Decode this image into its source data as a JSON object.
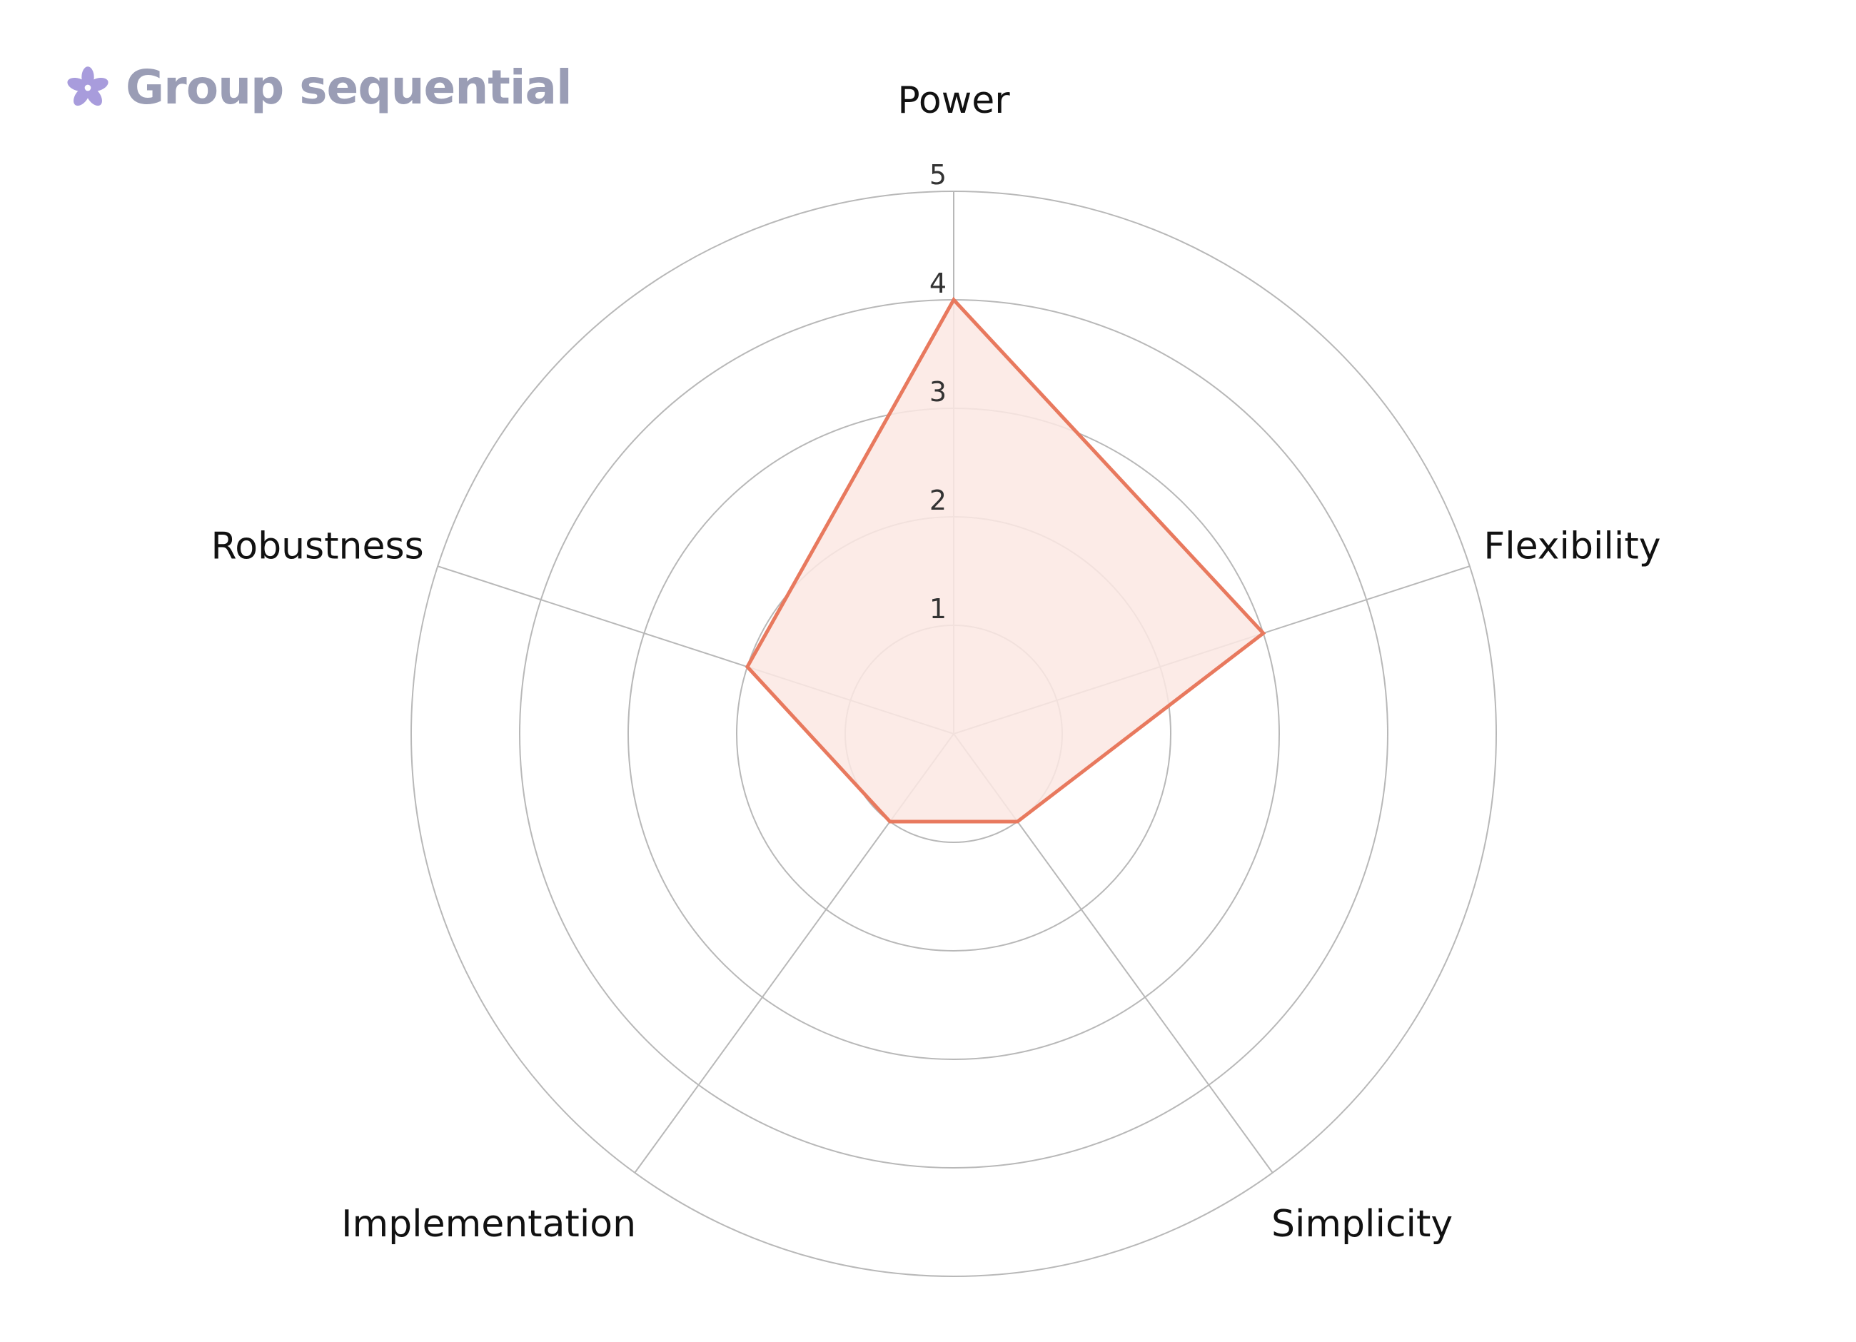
{
  "brand": {
    "title": "Group sequential",
    "icon": "flower-icon",
    "icon_color": "#a89cdc"
  },
  "chart_data": {
    "type": "radar",
    "axes": [
      "Power",
      "Flexibility",
      "Simplicity",
      "Implementation",
      "Robustness"
    ],
    "values": [
      4,
      3,
      1,
      1,
      2
    ],
    "rlim": [
      0,
      5
    ],
    "ticks": [
      1,
      2,
      3,
      4,
      5
    ],
    "grid": true,
    "colors": {
      "line": "#e8795e",
      "fill": "#fbe7e3",
      "grid": "#b8b8b8",
      "text": "#111111"
    }
  }
}
